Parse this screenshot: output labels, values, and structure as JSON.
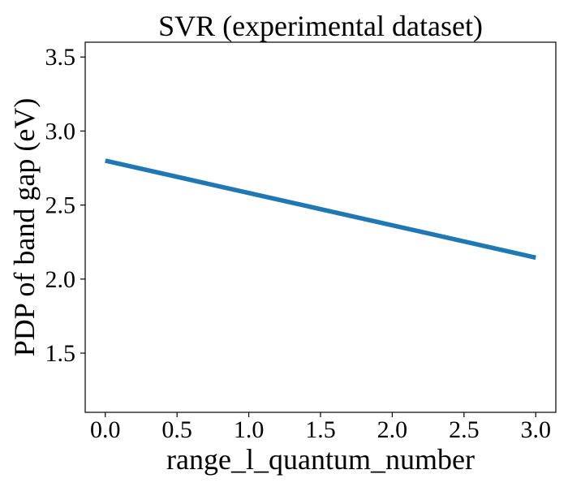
{
  "chart_data": {
    "type": "line",
    "title": "SVR (experimental dataset)",
    "xlabel": "range_l_quantum_number",
    "ylabel": "PDP of band gap (eV)",
    "xlim": [
      -0.14,
      3.14
    ],
    "ylim": [
      1.1,
      3.6
    ],
    "xticks": [
      0.0,
      0.5,
      1.0,
      1.5,
      2.0,
      2.5,
      3.0
    ],
    "xtick_labels": [
      "0.0",
      "0.5",
      "1.0",
      "1.5",
      "2.0",
      "2.5",
      "3.0"
    ],
    "yticks": [
      1.5,
      2.0,
      2.5,
      3.0,
      3.5
    ],
    "ytick_labels": [
      "1.5",
      "2.0",
      "2.5",
      "3.0",
      "3.5"
    ],
    "grid": false,
    "legend": "none",
    "series": [
      {
        "color": "#1f77b4",
        "x": [
          0.0,
          3.0
        ],
        "y": [
          2.8,
          2.145
        ]
      }
    ]
  }
}
